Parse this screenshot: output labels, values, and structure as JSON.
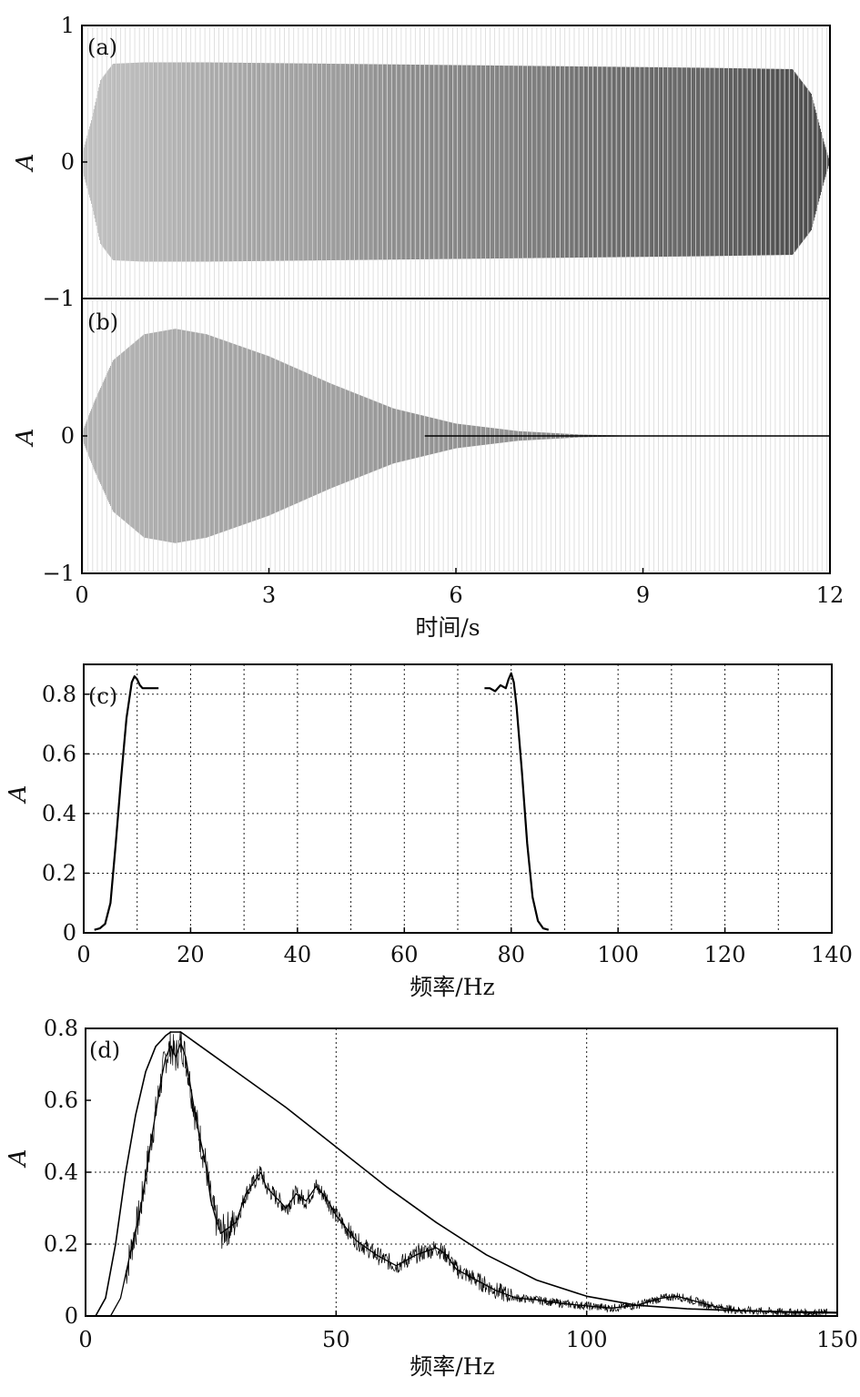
{
  "chart_data": [
    {
      "panel": "(a)",
      "type": "line",
      "ylabel": "A",
      "xlim": [
        0,
        12
      ],
      "ylim": [
        -1,
        1
      ],
      "yticks": [
        1,
        0,
        -1
      ],
      "ytick_labels": [
        "1",
        "0",
        "−1"
      ],
      "grid": false,
      "series": [
        {
          "x": [
            0,
            0.15,
            0.3,
            0.5,
            1,
            2,
            4,
            6,
            8,
            10,
            11.4,
            11.7,
            11.9,
            12
          ],
          "y": [
            0.05,
            0.3,
            0.6,
            0.72,
            0.73,
            0.73,
            0.72,
            0.71,
            0.7,
            0.69,
            0.68,
            0.5,
            0.15,
            0.0
          ]
        }
      ]
    },
    {
      "panel": "(b)",
      "type": "line",
      "ylabel": "A",
      "xlim": [
        0,
        12
      ],
      "ylim": [
        -1,
        1
      ],
      "yticks": [
        1,
        0,
        -1
      ],
      "ytick_labels": [
        "1",
        "0",
        "−1"
      ],
      "xticks": [
        0,
        3,
        6,
        9,
        12
      ],
      "xtick_labels": [
        "0",
        "3",
        "6",
        "9",
        "12"
      ],
      "xlabel": "时间/s",
      "grid": false,
      "series": [
        {
          "x": [
            0,
            0.2,
            0.5,
            1,
            1.5,
            2,
            3,
            4,
            5,
            6,
            7,
            8,
            8.8,
            9,
            12
          ],
          "y": [
            0.02,
            0.25,
            0.55,
            0.74,
            0.78,
            0.74,
            0.58,
            0.38,
            0.2,
            0.09,
            0.035,
            0.01,
            0.002,
            0.0,
            0.0
          ]
        }
      ]
    },
    {
      "panel": "(c)",
      "type": "line",
      "ylabel": "A",
      "xlabel": "频率/Hz",
      "xlim": [
        0,
        140
      ],
      "ylim": [
        0,
        0.9
      ],
      "xticks": [
        0,
        20,
        40,
        60,
        80,
        100,
        120,
        140
      ],
      "yticks": [
        0,
        0.2,
        0.4,
        0.6,
        0.8
      ],
      "ytick_labels": [
        "0",
        "0.2",
        "0.4",
        "0.6",
        "0.8"
      ],
      "grid": true,
      "grid_x": [
        10,
        20,
        30,
        40,
        50,
        60,
        70,
        80,
        90,
        100,
        110,
        120,
        130
      ],
      "grid_y": [
        0.2,
        0.4,
        0.6,
        0.8
      ],
      "series": [
        {
          "x": [
            2,
            3,
            4,
            5,
            6,
            7,
            8,
            9,
            9.5,
            10,
            10.5,
            11,
            12,
            13,
            14
          ],
          "y": [
            0.01,
            0.015,
            0.03,
            0.1,
            0.3,
            0.52,
            0.72,
            0.84,
            0.86,
            0.85,
            0.83,
            0.82,
            0.82,
            0.82,
            0.82
          ]
        },
        {
          "x": [
            75,
            76,
            77,
            78,
            79,
            79.5,
            80,
            80.5,
            81,
            82,
            83,
            84,
            85,
            86,
            87
          ],
          "y": [
            0.82,
            0.82,
            0.81,
            0.83,
            0.82,
            0.85,
            0.87,
            0.84,
            0.76,
            0.54,
            0.3,
            0.12,
            0.04,
            0.015,
            0.01
          ]
        }
      ]
    },
    {
      "panel": "(d)",
      "type": "line",
      "ylabel": "A",
      "xlabel": "频率/Hz",
      "xlim": [
        0,
        150
      ],
      "ylim": [
        0,
        0.8
      ],
      "xticks": [
        0,
        50,
        100,
        150
      ],
      "yticks": [
        0,
        0.2,
        0.4,
        0.6,
        0.8
      ],
      "ytick_labels": [
        "0",
        "0.2",
        "0.4",
        "0.6",
        "0.8"
      ],
      "grid": true,
      "grid_x": [
        50,
        100
      ],
      "grid_y": [
        0.2,
        0.4
      ],
      "series": [
        {
          "x": [
            0,
            2,
            4,
            6,
            8,
            10,
            12,
            14,
            16,
            17,
            18,
            19,
            20,
            22,
            25,
            30,
            40,
            50,
            60,
            70,
            80,
            90,
            100,
            110,
            120,
            130,
            140,
            150
          ],
          "y": [
            0,
            0.0,
            0.05,
            0.2,
            0.4,
            0.56,
            0.68,
            0.75,
            0.78,
            0.79,
            0.79,
            0.79,
            0.78,
            0.76,
            0.73,
            0.68,
            0.58,
            0.47,
            0.36,
            0.26,
            0.17,
            0.1,
            0.055,
            0.03,
            0.02,
            0.015,
            0.012,
            0.01
          ]
        },
        {
          "x": [
            0,
            3,
            5,
            7,
            9,
            11,
            13,
            15,
            16,
            17,
            18,
            19,
            20,
            22,
            24,
            25,
            26,
            27,
            28,
            30,
            32,
            34,
            35,
            36,
            38,
            40,
            42,
            44,
            46,
            48,
            50,
            54,
            58,
            62,
            66,
            70,
            72,
            74,
            78,
            82,
            86,
            90,
            95,
            100,
            105,
            110,
            115,
            118,
            122,
            126,
            130,
            135,
            140,
            150
          ],
          "y": [
            0,
            0.0,
            0.0,
            0.05,
            0.18,
            0.3,
            0.48,
            0.65,
            0.72,
            0.75,
            0.72,
            0.76,
            0.72,
            0.55,
            0.42,
            0.32,
            0.27,
            0.23,
            0.24,
            0.26,
            0.34,
            0.38,
            0.4,
            0.36,
            0.33,
            0.3,
            0.34,
            0.32,
            0.36,
            0.33,
            0.28,
            0.21,
            0.17,
            0.14,
            0.17,
            0.19,
            0.17,
            0.13,
            0.1,
            0.07,
            0.05,
            0.045,
            0.035,
            0.028,
            0.022,
            0.03,
            0.05,
            0.055,
            0.04,
            0.025,
            0.016,
            0.013,
            0.01,
            0.008
          ]
        }
      ]
    }
  ],
  "labels": {
    "a": "(a)",
    "b": "(b)",
    "c": "(c)",
    "d": "(d)",
    "y": "A",
    "time_x": "时间/s",
    "freq_x": "频率/Hz"
  }
}
